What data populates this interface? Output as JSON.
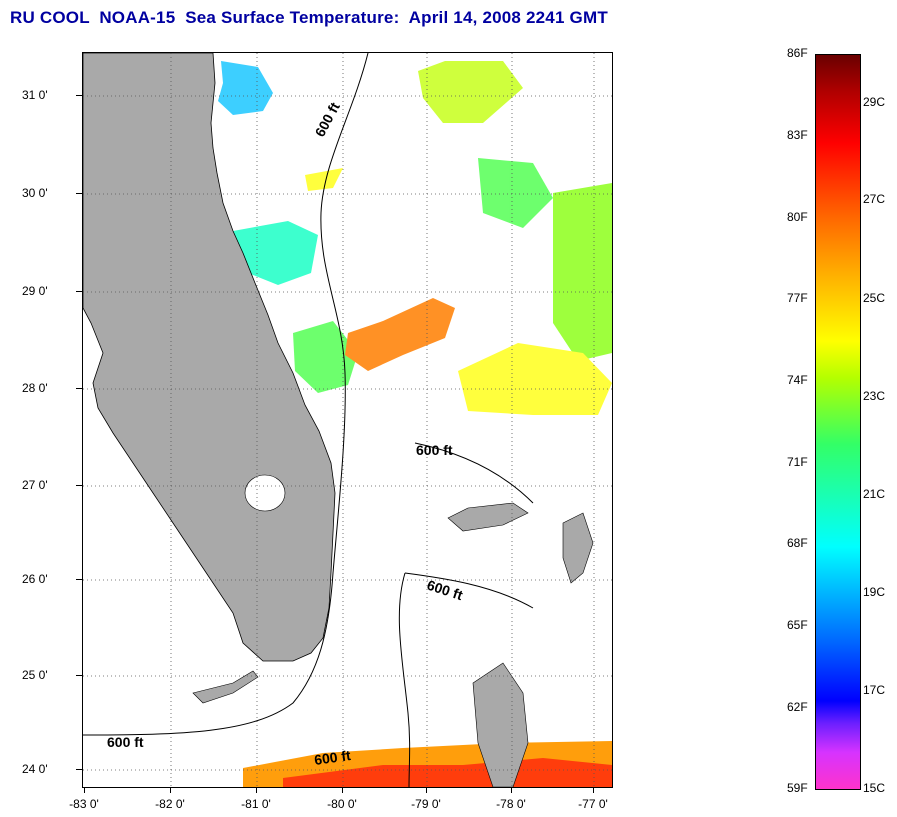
{
  "title": "RU COOL  NOAA-15  Sea Surface Temperature:  April 14, 2008 2241 GMT",
  "lat_labels": [
    "31 0'",
    "30 0'",
    "29 0'",
    "28 0'",
    "27 0'",
    "26 0'",
    "25 0'",
    "24 0'"
  ],
  "lon_labels": [
    "-83 0'",
    "-82 0'",
    "-81 0'",
    "-80 0'",
    "-79 0'",
    "-78 0'",
    "-77 0'"
  ],
  "contour_labels": [
    "600 ft",
    "600 ft",
    "600 ft",
    "600 ft",
    "600 ft"
  ],
  "colorbar": {
    "fahrenheit": [
      "86F",
      "83F",
      "80F",
      "77F",
      "74F",
      "71F",
      "68F",
      "65F",
      "62F",
      "59F"
    ],
    "celsius": [
      "29C",
      "27C",
      "25C",
      "23C",
      "21C",
      "19C",
      "17C",
      "15C"
    ]
  },
  "colors": {
    "title": "#0000a0",
    "land": "#a9a9a9",
    "ocean_no_data": "#ffffff"
  }
}
